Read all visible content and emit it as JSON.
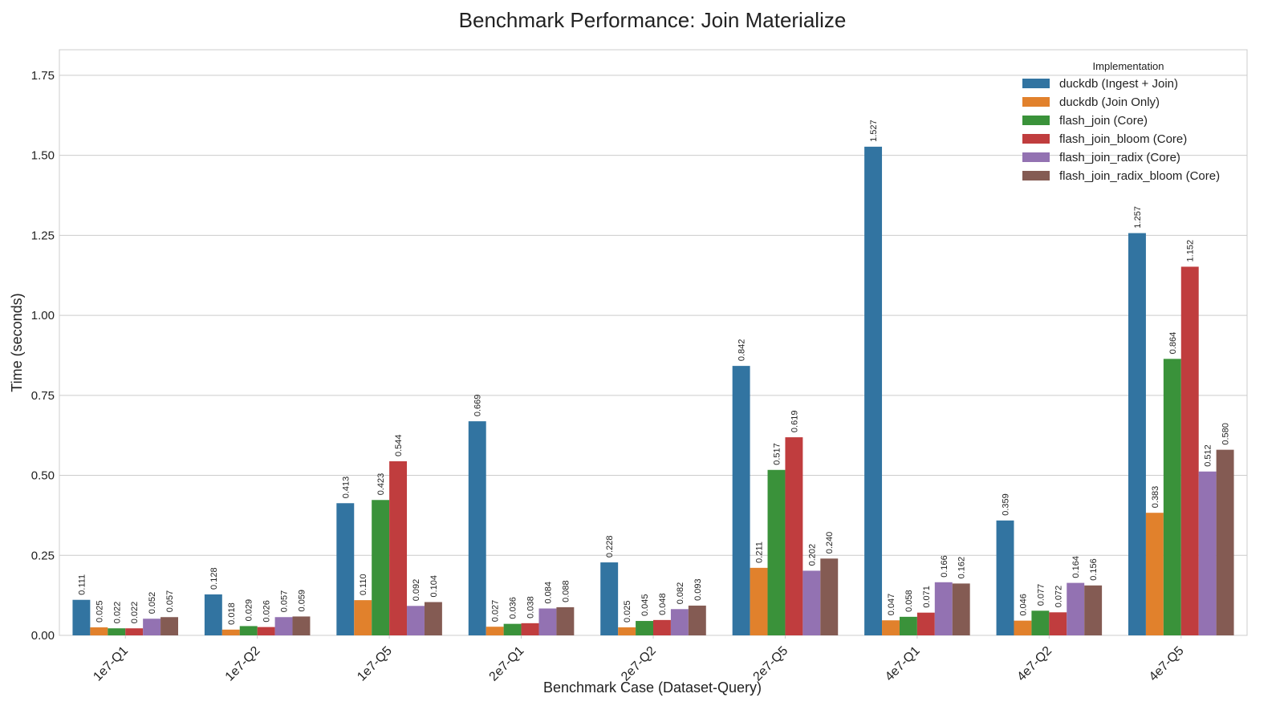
{
  "chart_data": {
    "type": "bar",
    "title": "Benchmark Performance: Join Materialize",
    "xlabel": "Benchmark Case (Dataset-Query)",
    "ylabel": "Time (seconds)",
    "ylim": [
      0,
      1.83
    ],
    "yticks": [
      "0.00",
      "0.25",
      "0.50",
      "0.75",
      "1.00",
      "1.25",
      "1.50",
      "1.75"
    ],
    "grid": true,
    "legend_title": "Implementation",
    "legend_position": "top-right",
    "categories": [
      "1e7-Q1",
      "1e7-Q2",
      "1e7-Q5",
      "2e7-Q1",
      "2e7-Q2",
      "2e7-Q5",
      "4e7-Q1",
      "4e7-Q2",
      "4e7-Q5"
    ],
    "series": [
      {
        "name": "duckdb (Ingest + Join)",
        "color": "#3274a1",
        "values": [
          0.111,
          0.128,
          0.413,
          0.669,
          0.228,
          0.842,
          1.527,
          0.359,
          1.257
        ],
        "labels": [
          "0.111",
          "0.128",
          "0.413",
          "0.669",
          "0.228",
          "0.842",
          "1.527",
          "0.359",
          "1.257"
        ]
      },
      {
        "name": "duckdb (Join Only)",
        "color": "#e1812c",
        "values": [
          0.025,
          0.018,
          0.11,
          0.027,
          0.025,
          0.211,
          0.047,
          0.046,
          0.383
        ],
        "labels": [
          "0.025",
          "0.018",
          "0.110",
          "0.027",
          "0.025",
          "0.211",
          "0.047",
          "0.046",
          "0.383"
        ]
      },
      {
        "name": "flash_join (Core)",
        "color": "#3a923a",
        "values": [
          0.022,
          0.029,
          0.423,
          0.036,
          0.045,
          0.517,
          0.058,
          0.077,
          0.864
        ],
        "labels": [
          "0.022",
          "0.029",
          "0.423",
          "0.036",
          "0.045",
          "0.517",
          "0.058",
          "0.077",
          "0.864"
        ]
      },
      {
        "name": "flash_join_bloom (Core)",
        "color": "#c03d3e",
        "values": [
          0.022,
          0.026,
          0.544,
          0.038,
          0.048,
          0.619,
          0.071,
          0.072,
          1.152
        ],
        "labels": [
          "0.022",
          "0.026",
          "0.544",
          "0.038",
          "0.048",
          "0.619",
          "0.071",
          "0.072",
          "1.152"
        ]
      },
      {
        "name": "flash_join_radix (Core)",
        "color": "#9372b2",
        "values": [
          0.052,
          0.057,
          0.092,
          0.084,
          0.082,
          0.202,
          0.166,
          0.164,
          0.512
        ],
        "labels": [
          "0.052",
          "0.057",
          "0.092",
          "0.084",
          "0.082",
          "0.202",
          "0.166",
          "0.164",
          "0.512"
        ]
      },
      {
        "name": "flash_join_radix_bloom (Core)",
        "color": "#845b53",
        "values": [
          0.057,
          0.059,
          0.104,
          0.088,
          0.093,
          0.24,
          0.162,
          0.156,
          0.58
        ],
        "labels": [
          "0.057",
          "0.059",
          "0.104",
          "0.088",
          "0.093",
          "0.240",
          "0.162",
          "0.156",
          "0.580"
        ]
      }
    ]
  }
}
